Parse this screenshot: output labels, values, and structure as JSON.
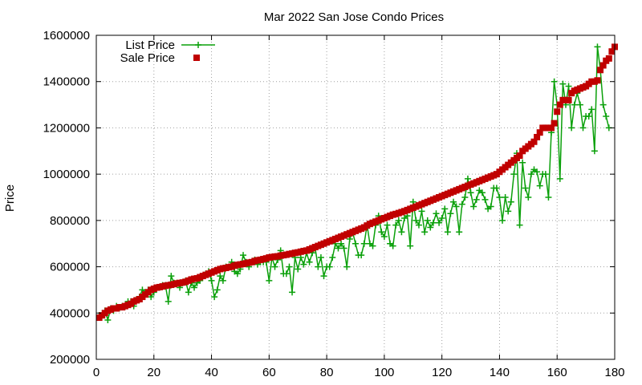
{
  "chart_data": {
    "type": "scatter",
    "title": "Mar 2022 San Jose Condo Prices",
    "xlabel": "",
    "ylabel": "Price",
    "xlim": [
      0,
      180
    ],
    "ylim": [
      200000,
      1600000
    ],
    "x_ticks": [
      0,
      20,
      40,
      60,
      80,
      100,
      120,
      140,
      160,
      180
    ],
    "y_ticks": [
      200000,
      400000,
      600000,
      800000,
      1000000,
      1200000,
      1400000,
      1600000
    ],
    "grid": true,
    "legend_position": "top-left",
    "series": [
      {
        "name": "List Price",
        "style": "lines+crosses",
        "color": "#0aa00a",
        "values": [
          390000,
          390000,
          410000,
          370000,
          420000,
          410000,
          430000,
          420000,
          430000,
          430000,
          450000,
          450000,
          430000,
          460000,
          470000,
          500000,
          490000,
          500000,
          470000,
          490000,
          510000,
          510000,
          520000,
          520000,
          450000,
          560000,
          530000,
          530000,
          510000,
          530000,
          540000,
          490000,
          530000,
          510000,
          530000,
          540000,
          560000,
          570000,
          580000,
          540000,
          470000,
          500000,
          560000,
          540000,
          600000,
          600000,
          620000,
          580000,
          570000,
          590000,
          650000,
          620000,
          600000,
          620000,
          630000,
          610000,
          620000,
          620000,
          620000,
          540000,
          640000,
          600000,
          630000,
          670000,
          570000,
          570000,
          600000,
          490000,
          640000,
          590000,
          640000,
          610000,
          660000,
          620000,
          660000,
          680000,
          600000,
          640000,
          560000,
          600000,
          600000,
          640000,
          700000,
          680000,
          700000,
          680000,
          600000,
          720000,
          750000,
          700000,
          650000,
          650000,
          700000,
          780000,
          700000,
          690000,
          780000,
          820000,
          750000,
          730000,
          780000,
          700000,
          690000,
          780000,
          800000,
          750000,
          810000,
          820000,
          690000,
          880000,
          800000,
          780000,
          840000,
          750000,
          800000,
          770000,
          790000,
          830000,
          790000,
          810000,
          850000,
          750000,
          830000,
          880000,
          860000,
          750000,
          870000,
          900000,
          980000,
          920000,
          860000,
          890000,
          930000,
          920000,
          890000,
          850000,
          860000,
          940000,
          940000,
          900000,
          800000,
          900000,
          840000,
          880000,
          1000000,
          1090000,
          780000,
          1050000,
          940000,
          900000,
          1000000,
          1020000,
          1010000,
          950000,
          1000000,
          1000000,
          900000,
          1180000,
          1400000,
          1300000,
          980000,
          1390000,
          1300000,
          1380000,
          1200000,
          1300000,
          1350000,
          1300000,
          1200000,
          1250000,
          1250000,
          1280000,
          1100000,
          1550000,
          1450000,
          1300000,
          1250000,
          1200000
        ]
      },
      {
        "name": "Sale Price",
        "style": "filled-squares",
        "color": "#c00000",
        "values": [
          380000,
          390000,
          400000,
          410000,
          415000,
          420000,
          420000,
          425000,
          425000,
          430000,
          435000,
          440000,
          450000,
          455000,
          460000,
          470000,
          480000,
          490000,
          500000,
          505000,
          510000,
          512000,
          515000,
          518000,
          520000,
          522000,
          525000,
          528000,
          530000,
          532000,
          535000,
          540000,
          545000,
          548000,
          550000,
          555000,
          560000,
          565000,
          570000,
          575000,
          580000,
          585000,
          590000,
          593000,
          595000,
          598000,
          600000,
          605000,
          608000,
          610000,
          612000,
          615000,
          618000,
          620000,
          625000,
          628000,
          630000,
          633000,
          636000,
          640000,
          642000,
          644000,
          645000,
          648000,
          650000,
          652000,
          655000,
          657000,
          660000,
          662000,
          665000,
          668000,
          670000,
          675000,
          680000,
          685000,
          690000,
          695000,
          700000,
          705000,
          710000,
          715000,
          720000,
          725000,
          730000,
          735000,
          740000,
          745000,
          750000,
          755000,
          760000,
          765000,
          770000,
          778000,
          785000,
          790000,
          795000,
          800000,
          805000,
          810000,
          815000,
          820000,
          825000,
          828000,
          832000,
          836000,
          840000,
          845000,
          850000,
          855000,
          860000,
          865000,
          870000,
          875000,
          880000,
          885000,
          890000,
          895000,
          900000,
          905000,
          910000,
          915000,
          920000,
          925000,
          930000,
          935000,
          940000,
          945000,
          950000,
          955000,
          960000,
          965000,
          970000,
          975000,
          980000,
          985000,
          990000,
          995000,
          1000000,
          1010000,
          1020000,
          1030000,
          1040000,
          1050000,
          1060000,
          1070000,
          1080000,
          1100000,
          1110000,
          1120000,
          1130000,
          1140000,
          1160000,
          1180000,
          1200000,
          1200000,
          1200000,
          1200000,
          1220000,
          1270000,
          1300000,
          1320000,
          1320000,
          1320000,
          1350000,
          1360000,
          1365000,
          1370000,
          1375000,
          1380000,
          1390000,
          1400000,
          1400000,
          1405000,
          1450000,
          1470000,
          1490000,
          1500000,
          1530000,
          1550000
        ]
      }
    ]
  }
}
